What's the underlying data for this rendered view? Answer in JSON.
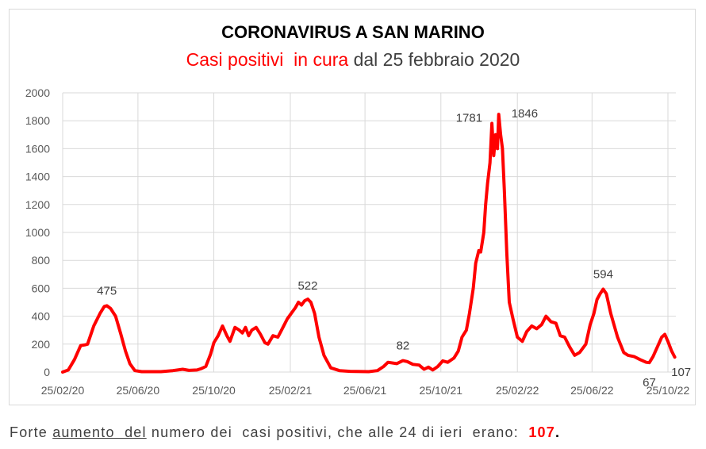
{
  "chart_data": {
    "type": "line",
    "title": "CORONAVIRUS A SAN MARINO",
    "subtitle": {
      "red_part_1": "Casi positivi",
      "red_part_2": "in cura",
      "rest": "dal 25 febbraio 2020"
    },
    "xlabel": "",
    "ylabel": "",
    "ylim": [
      0,
      2000
    ],
    "yticks": [
      "0",
      "200",
      "400",
      "600",
      "800",
      "1000",
      "1200",
      "1400",
      "1600",
      "1800",
      "2000"
    ],
    "xticks": [
      "25/02/20",
      "25/06/20",
      "25/10/20",
      "25/02/21",
      "25/06/21",
      "25/10/21",
      "25/02/22",
      "25/06/22",
      "25/10/22"
    ],
    "grid": true,
    "line_color": "#ff0000",
    "series": [
      {
        "points": [
          [
            "2020-02-25",
            0
          ],
          [
            "2020-03-05",
            15
          ],
          [
            "2020-03-15",
            90
          ],
          [
            "2020-03-25",
            190
          ],
          [
            "2020-04-01",
            195
          ],
          [
            "2020-04-05",
            200
          ],
          [
            "2020-04-15",
            330
          ],
          [
            "2020-04-25",
            420
          ],
          [
            "2020-05-02",
            470
          ],
          [
            "2020-05-06",
            475
          ],
          [
            "2020-05-12",
            455
          ],
          [
            "2020-05-20",
            400
          ],
          [
            "2020-05-28",
            280
          ],
          [
            "2020-06-05",
            150
          ],
          [
            "2020-06-12",
            60
          ],
          [
            "2020-06-20",
            10
          ],
          [
            "2020-07-01",
            3
          ],
          [
            "2020-08-01",
            3
          ],
          [
            "2020-08-20",
            10
          ],
          [
            "2020-09-05",
            20
          ],
          [
            "2020-09-15",
            12
          ],
          [
            "2020-09-28",
            15
          ],
          [
            "2020-10-05",
            25
          ],
          [
            "2020-10-12",
            40
          ],
          [
            "2020-10-20",
            130
          ],
          [
            "2020-10-25",
            210
          ],
          [
            "2020-11-01",
            260
          ],
          [
            "2020-11-08",
            330
          ],
          [
            "2020-11-15",
            260
          ],
          [
            "2020-11-20",
            220
          ],
          [
            "2020-11-28",
            320
          ],
          [
            "2020-12-05",
            300
          ],
          [
            "2020-12-10",
            280
          ],
          [
            "2020-12-15",
            320
          ],
          [
            "2020-12-20",
            260
          ],
          [
            "2020-12-25",
            300
          ],
          [
            "2021-01-01",
            320
          ],
          [
            "2021-01-08",
            270
          ],
          [
            "2021-01-15",
            210
          ],
          [
            "2021-01-20",
            200
          ],
          [
            "2021-01-28",
            260
          ],
          [
            "2021-02-05",
            250
          ],
          [
            "2021-02-12",
            310
          ],
          [
            "2021-02-20",
            380
          ],
          [
            "2021-02-28",
            430
          ],
          [
            "2021-03-05",
            460
          ],
          [
            "2021-03-10",
            500
          ],
          [
            "2021-03-15",
            480
          ],
          [
            "2021-03-20",
            510
          ],
          [
            "2021-03-25",
            522
          ],
          [
            "2021-03-30",
            500
          ],
          [
            "2021-04-05",
            420
          ],
          [
            "2021-04-12",
            250
          ],
          [
            "2021-04-20",
            120
          ],
          [
            "2021-05-01",
            30
          ],
          [
            "2021-05-15",
            10
          ],
          [
            "2021-06-01",
            5
          ],
          [
            "2021-07-01",
            3
          ],
          [
            "2021-07-15",
            10
          ],
          [
            "2021-07-25",
            40
          ],
          [
            "2021-08-01",
            70
          ],
          [
            "2021-08-15",
            60
          ],
          [
            "2021-08-25",
            82
          ],
          [
            "2021-09-01",
            75
          ],
          [
            "2021-09-10",
            55
          ],
          [
            "2021-09-20",
            50
          ],
          [
            "2021-09-28",
            20
          ],
          [
            "2021-10-05",
            35
          ],
          [
            "2021-10-12",
            15
          ],
          [
            "2021-10-20",
            40
          ],
          [
            "2021-10-28",
            80
          ],
          [
            "2021-11-05",
            70
          ],
          [
            "2021-11-15",
            100
          ],
          [
            "2021-11-22",
            150
          ],
          [
            "2021-11-28",
            250
          ],
          [
            "2021-12-05",
            300
          ],
          [
            "2021-12-10",
            420
          ],
          [
            "2021-12-16",
            600
          ],
          [
            "2021-12-20",
            780
          ],
          [
            "2021-12-25",
            870
          ],
          [
            "2021-12-28",
            860
          ],
          [
            "2022-01-02",
            1000
          ],
          [
            "2022-01-05",
            1200
          ],
          [
            "2022-01-08",
            1350
          ],
          [
            "2022-01-12",
            1500
          ],
          [
            "2022-01-15",
            1781
          ],
          [
            "2022-01-18",
            1550
          ],
          [
            "2022-01-21",
            1700
          ],
          [
            "2022-01-24",
            1600
          ],
          [
            "2022-01-26",
            1846
          ],
          [
            "2022-01-29",
            1700
          ],
          [
            "2022-02-01",
            1600
          ],
          [
            "2022-02-04",
            1300
          ],
          [
            "2022-02-08",
            850
          ],
          [
            "2022-02-12",
            500
          ],
          [
            "2022-02-18",
            380
          ],
          [
            "2022-02-25",
            250
          ],
          [
            "2022-03-05",
            220
          ],
          [
            "2022-03-12",
            290
          ],
          [
            "2022-03-20",
            330
          ],
          [
            "2022-03-28",
            310
          ],
          [
            "2022-04-05",
            340
          ],
          [
            "2022-04-12",
            400
          ],
          [
            "2022-04-20",
            360
          ],
          [
            "2022-04-28",
            350
          ],
          [
            "2022-05-05",
            260
          ],
          [
            "2022-05-12",
            250
          ],
          [
            "2022-05-20",
            180
          ],
          [
            "2022-05-28",
            120
          ],
          [
            "2022-06-05",
            140
          ],
          [
            "2022-06-15",
            200
          ],
          [
            "2022-06-22",
            340
          ],
          [
            "2022-06-28",
            420
          ],
          [
            "2022-07-03",
            520
          ],
          [
            "2022-07-08",
            560
          ],
          [
            "2022-07-13",
            594
          ],
          [
            "2022-07-18",
            560
          ],
          [
            "2022-07-25",
            420
          ],
          [
            "2022-08-05",
            250
          ],
          [
            "2022-08-15",
            140
          ],
          [
            "2022-08-22",
            120
          ],
          [
            "2022-09-01",
            110
          ],
          [
            "2022-09-10",
            90
          ],
          [
            "2022-09-20",
            70
          ],
          [
            "2022-09-25",
            67
          ],
          [
            "2022-10-01",
            110
          ],
          [
            "2022-10-08",
            180
          ],
          [
            "2022-10-15",
            250
          ],
          [
            "2022-10-20",
            270
          ],
          [
            "2022-10-25",
            220
          ],
          [
            "2022-10-31",
            150
          ],
          [
            "2022-11-05",
            107
          ]
        ]
      }
    ],
    "annotations": [
      {
        "text": "475",
        "x": "2020-05-06",
        "y": 475
      },
      {
        "text": "522",
        "x": "2021-03-25",
        "y": 522
      },
      {
        "text": "82",
        "x": "2021-08-25",
        "y": 82
      },
      {
        "text": "1781",
        "x": "2022-01-15",
        "y": 1781
      },
      {
        "text": "1846",
        "x": "2022-01-26",
        "y": 1846
      },
      {
        "text": "594",
        "x": "2022-07-13",
        "y": 594
      },
      {
        "text": "67",
        "x": "2022-09-25",
        "y": 67
      },
      {
        "text": "107",
        "x": "2022-11-05",
        "y": 107
      }
    ]
  },
  "footer": {
    "prefix": "Forte ",
    "underlined": "aumento  del",
    "middle": " numero dei  casi positivi, che alle 24 di ieri  erano:  ",
    "number": "107",
    "end": "."
  }
}
